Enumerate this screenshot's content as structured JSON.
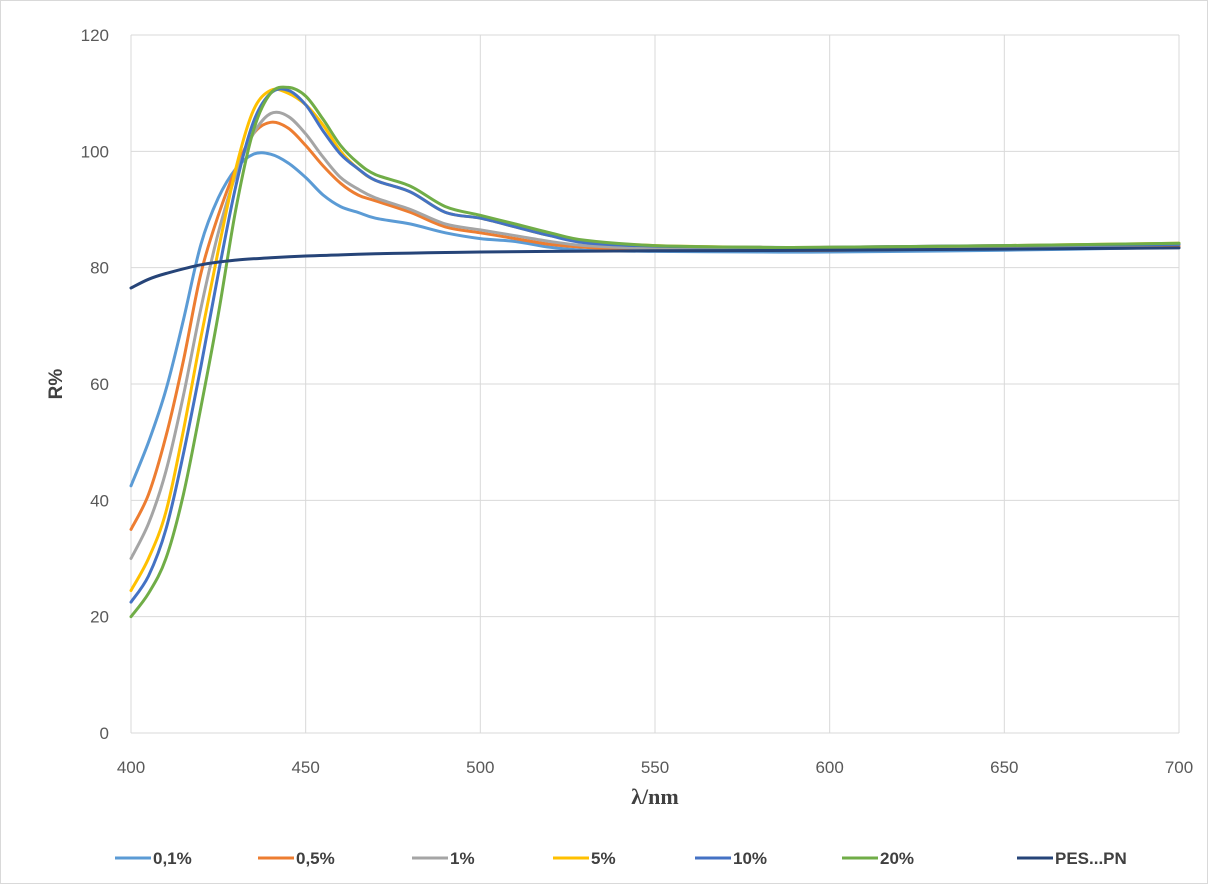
{
  "chart_data": {
    "type": "line",
    "xlabel": "λ/nm",
    "ylabel": "R%",
    "xlim": [
      400,
      700
    ],
    "ylim": [
      0,
      120
    ],
    "x_ticks": [
      400,
      450,
      500,
      550,
      600,
      650,
      700
    ],
    "y_ticks": [
      0,
      20,
      40,
      60,
      80,
      100,
      120
    ],
    "grid": "on",
    "legend_position": "bottom",
    "series": [
      {
        "name": "0,1%",
        "color": "#5b9bd5",
        "x": [
          400,
          405,
          410,
          415,
          420,
          425,
          430,
          435,
          440,
          445,
          450,
          455,
          460,
          465,
          470,
          480,
          490,
          500,
          510,
          520,
          530,
          550,
          580,
          600,
          650,
          700
        ],
        "y": [
          42.5,
          50,
          59,
          71,
          84,
          92,
          97,
          99.5,
          99.5,
          98,
          95.5,
          92.5,
          90.5,
          89.5,
          88.5,
          87.5,
          86,
          85,
          84.5,
          83.5,
          83,
          82.8,
          82.7,
          82.7,
          83,
          83.5
        ]
      },
      {
        "name": "0,5%",
        "color": "#ed7d31",
        "x": [
          400,
          405,
          410,
          415,
          420,
          425,
          430,
          435,
          440,
          445,
          450,
          455,
          460,
          465,
          470,
          480,
          490,
          500,
          510,
          520,
          530,
          550,
          580,
          600,
          650,
          700
        ],
        "y": [
          35,
          41,
          51,
          64,
          79,
          89,
          97,
          103,
          105,
          104,
          101,
          97.5,
          94.5,
          92.5,
          91.5,
          89.5,
          87,
          86,
          85,
          84,
          83.5,
          83,
          83,
          83,
          83.3,
          83.7
        ]
      },
      {
        "name": "1%",
        "color": "#a5a5a5",
        "x": [
          400,
          405,
          410,
          415,
          420,
          425,
          430,
          435,
          440,
          445,
          450,
          455,
          460,
          465,
          470,
          480,
          490,
          500,
          510,
          520,
          530,
          550,
          580,
          600,
          650,
          700
        ],
        "y": [
          30,
          36,
          45,
          58,
          73,
          86,
          96,
          103,
          106.5,
          106,
          103,
          99,
          95.5,
          93.5,
          92,
          90,
          87.5,
          86.5,
          85.5,
          84.5,
          83.8,
          83.3,
          83.2,
          83.2,
          83.5,
          84
        ]
      },
      {
        "name": "5%",
        "color": "#ffc000",
        "x": [
          400,
          405,
          410,
          415,
          420,
          425,
          430,
          435,
          440,
          445,
          450,
          455,
          460,
          465,
          470,
          480,
          490,
          500,
          510,
          520,
          530,
          550,
          580,
          600,
          650,
          700
        ],
        "y": [
          24.5,
          30,
          38,
          52,
          68,
          83,
          97,
          107,
          110.5,
          110,
          108,
          104.5,
          100,
          97,
          95,
          93,
          89.5,
          88.5,
          87,
          85.5,
          84.5,
          83.8,
          83.5,
          83.5,
          83.8,
          84.2
        ]
      },
      {
        "name": "10%",
        "color": "#4472c4",
        "x": [
          400,
          405,
          410,
          415,
          420,
          425,
          430,
          435,
          440,
          445,
          450,
          455,
          460,
          465,
          470,
          480,
          490,
          500,
          510,
          520,
          530,
          550,
          580,
          600,
          650,
          700
        ],
        "y": [
          22.5,
          27,
          35,
          48,
          63,
          79,
          94,
          105,
          110,
          110.5,
          108,
          103.5,
          99.5,
          97,
          95,
          93,
          89.5,
          88.5,
          87,
          85.5,
          84.3,
          83.7,
          83.5,
          83.5,
          83.8,
          84
        ]
      },
      {
        "name": "20%",
        "color": "#70ad47",
        "x": [
          400,
          405,
          410,
          415,
          420,
          425,
          430,
          435,
          440,
          445,
          450,
          455,
          460,
          465,
          470,
          480,
          490,
          500,
          510,
          520,
          530,
          550,
          580,
          600,
          650,
          700
        ],
        "y": [
          20,
          24,
          30,
          41,
          56,
          72,
          90,
          103.5,
          110,
          111,
          109.5,
          105.5,
          101,
          98,
          96,
          94,
          90.5,
          89,
          87.5,
          86,
          84.7,
          83.8,
          83.5,
          83.5,
          83.8,
          84.2
        ]
      },
      {
        "name": "PES...PN",
        "color": "#264478",
        "x": [
          400,
          405,
          410,
          420,
          430,
          440,
          450,
          460,
          470,
          480,
          490,
          500,
          520,
          550,
          600,
          650,
          700
        ],
        "y": [
          76.5,
          78,
          79,
          80.5,
          81.3,
          81.7,
          82,
          82.2,
          82.4,
          82.5,
          82.6,
          82.7,
          82.8,
          82.9,
          83,
          83.2,
          83.4
        ]
      }
    ]
  }
}
